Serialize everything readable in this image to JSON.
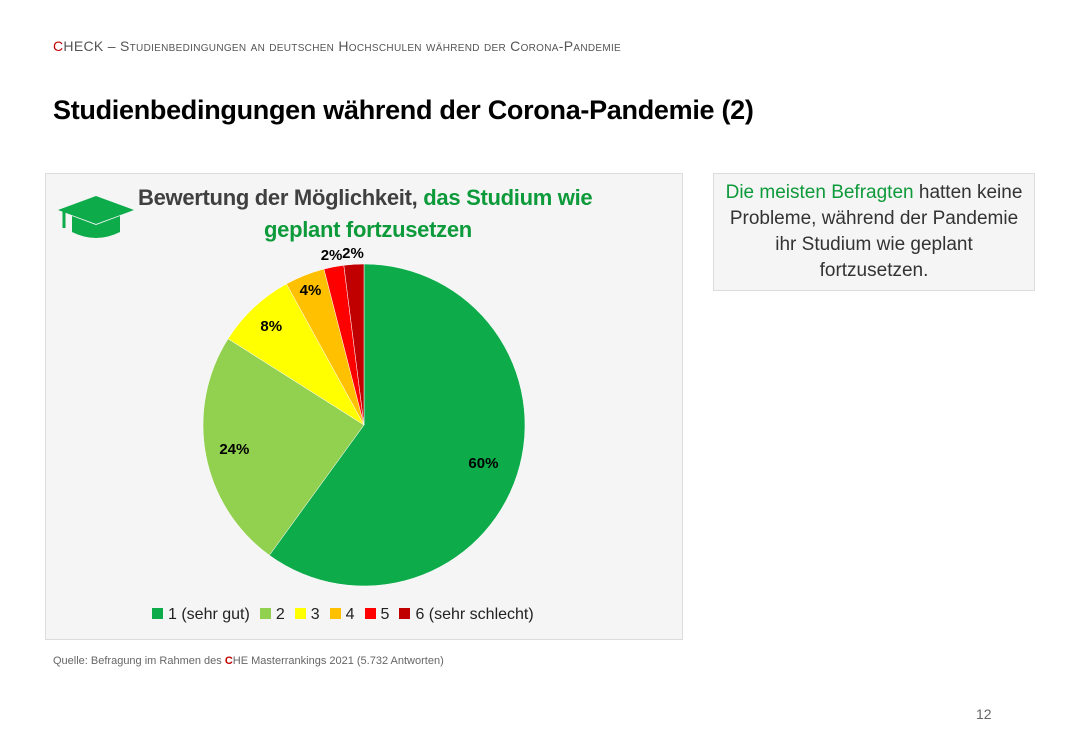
{
  "header": {
    "prefix_red": "C",
    "prefix_rest": "HECK",
    "rest": " – Studienbedingungen an deutschen Hochschulen während der Corona-Pandemie"
  },
  "title": "Studienbedingungen während der Corona-Pandemie (2)",
  "chart_heading": {
    "part1": "Bewertung der Möglichkeit, ",
    "part2": "das Studium wie",
    "line2": "geplant fortzusetzen"
  },
  "chart_data": {
    "type": "pie",
    "title": "Bewertung der Möglichkeit, das Studium wie geplant fortzusetzen",
    "categories": [
      "1 (sehr gut)",
      "2",
      "3",
      "4",
      "5",
      "6 (sehr schlecht)"
    ],
    "values": [
      60,
      24,
      8,
      4,
      2,
      2
    ],
    "labels": [
      "60%",
      "24%",
      "8%",
      "4%",
      "2%",
      "2%"
    ],
    "colors": [
      "#0dab4a",
      "#92d050",
      "#ffff00",
      "#ffc000",
      "#ff0000",
      "#c00000"
    ],
    "legend_position": "bottom"
  },
  "note": {
    "highlight": "Die meisten Befragten",
    "rest": " hatten keine Probleme, während der Pandemie ihr Studium wie geplant fortzusetzen."
  },
  "source": {
    "prefix": "Quelle: Befragung im Rahmen des ",
    "red": "C",
    "suffix": "HE Masterrankings 2021 (5.732 Antworten)"
  },
  "page_number": "12",
  "icons": {
    "cap": "graduation-cap-icon"
  }
}
